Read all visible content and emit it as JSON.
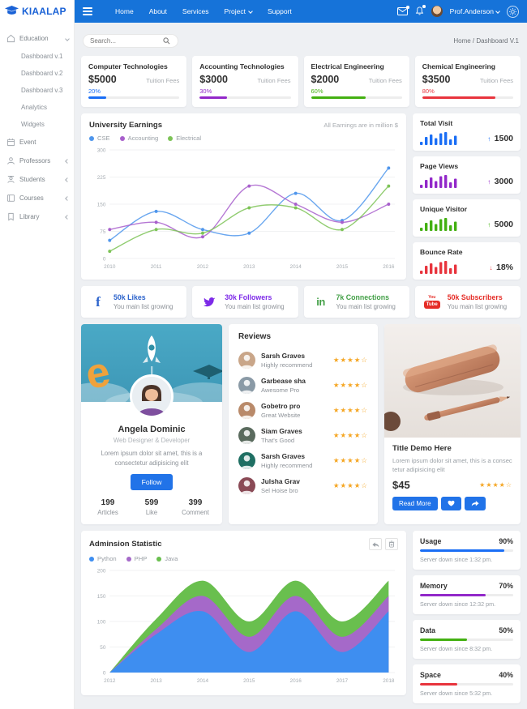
{
  "brand": {
    "name": "KIAALAP"
  },
  "navbar": {
    "links": [
      "Home",
      "About",
      "Services",
      "Project",
      "Support"
    ],
    "user": "Prof.Anderson"
  },
  "search": {
    "placeholder": "Search..."
  },
  "breadcrumb": {
    "text": "Home / Dashboard V.1"
  },
  "sidebar": {
    "items": [
      {
        "label": "Education"
      },
      {
        "label": "Dashboard v.1"
      },
      {
        "label": "Dashboard v.2"
      },
      {
        "label": "Dashboard v.3"
      },
      {
        "label": "Analytics"
      },
      {
        "label": "Widgets"
      },
      {
        "label": "Event"
      },
      {
        "label": "Professors"
      },
      {
        "label": "Students"
      },
      {
        "label": "Courses"
      },
      {
        "label": "Library"
      }
    ]
  },
  "fee_cards": [
    {
      "title": "Computer Technologies",
      "amount": "$5000",
      "fees_label": "Tuition Fees",
      "percent": "20%",
      "value": 20,
      "color": "#1a6ef5"
    },
    {
      "title": "Accounting Technologies",
      "amount": "$3000",
      "fees_label": "Tuition Fees",
      "percent": "30%",
      "value": 30,
      "color": "#9228c9"
    },
    {
      "title": "Electrical Engineering",
      "amount": "$2000",
      "fees_label": "Tuition Fees",
      "percent": "60%",
      "value": 60,
      "color": "#43b011"
    },
    {
      "title": "Chemical Engineering",
      "amount": "$3500",
      "fees_label": "Tuition Fees",
      "percent": "80%",
      "value": 80,
      "color": "#e8343d"
    }
  ],
  "earnings": {
    "title": "University Earnings",
    "note": "All Earnings are in million $"
  },
  "visit_cards": [
    {
      "title": "Total Visit",
      "value": "1500",
      "arrow": "↑",
      "color": "#1a6ef5"
    },
    {
      "title": "Page Views",
      "value": "3000",
      "arrow": "↑",
      "color": "#9228c9"
    },
    {
      "title": "Unique Visitor",
      "value": "5000",
      "arrow": "↑",
      "color": "#43b011"
    },
    {
      "title": "Bounce Rate",
      "value": "18%",
      "arrow": "↓",
      "color": "#e8343d"
    }
  ],
  "sparkline": [
    2,
    6,
    8,
    5,
    9,
    10,
    4,
    7
  ],
  "social_cards": [
    {
      "network": "facebook",
      "stat": "50k Likes",
      "sub": "You main list growing",
      "color": "#2d64cc"
    },
    {
      "network": "twitter",
      "stat": "30k Followers",
      "sub": "You main list growing",
      "color": "#7d2ae8"
    },
    {
      "network": "linkedin",
      "stat": "7k Connections",
      "sub": "You main list growing",
      "color": "#43a047"
    },
    {
      "network": "youtube",
      "stat": "50k Subscribers",
      "sub": "You main list growing",
      "color": "#e52d27",
      "logo_you": "You",
      "logo_tube": "Tube"
    }
  ],
  "profile": {
    "name": "Angela Dominic",
    "role": "Web Designer & Developer",
    "bio": "Lorem ipsum dolor sit amet, this is a consectetur adipisicing elit",
    "follow_label": "Follow",
    "stats": [
      {
        "value": "199",
        "label": "Articles"
      },
      {
        "value": "599",
        "label": "Like"
      },
      {
        "value": "399",
        "label": "Comment"
      }
    ]
  },
  "reviews": {
    "title": "Reviews",
    "items": [
      {
        "name": "Sarsh Graves",
        "comment": "Highly recommend",
        "stars": "★★★★☆",
        "avatar_bg": "#c9a689"
      },
      {
        "name": "Garbease sha",
        "comment": "Awesome Pro",
        "stars": "★★★★☆",
        "avatar_bg": "#8a9aa6"
      },
      {
        "name": "Gobetro pro",
        "comment": "Great Website",
        "stars": "★★★★☆",
        "avatar_bg": "#b98a6a"
      },
      {
        "name": "Siam Graves",
        "comment": "That's Good",
        "stars": "★★★★☆",
        "avatar_bg": "#5a6b5e"
      },
      {
        "name": "Sarsh Graves",
        "comment": "Highly recommend",
        "stars": "★★★★☆",
        "avatar_bg": "#1f6f63"
      },
      {
        "name": "Julsha Grav",
        "comment": "Sel Hoise bro",
        "stars": "★★★★☆",
        "avatar_bg": "#8a4a56"
      }
    ]
  },
  "product": {
    "title": "Title Demo Here",
    "desc": "Lorem ipsum dolor sit amet, this is a consec tetur adipisicing elit",
    "price": "$45",
    "stars": "★★★★☆",
    "read_more": "Read More"
  },
  "admission": {
    "title": "Adminsion Statistic"
  },
  "server_cards": [
    {
      "title": "Usage",
      "percent": "90%",
      "value": 90,
      "color": "#1a6ef5",
      "note": "Server down since 1:32 pm."
    },
    {
      "title": "Memory",
      "percent": "70%",
      "value": 70,
      "color": "#9228c9",
      "note": "Server down since 12:32 pm."
    },
    {
      "title": "Data",
      "percent": "50%",
      "value": 50,
      "color": "#43b011",
      "note": "Server down since 8:32 pm."
    },
    {
      "title": "Space",
      "percent": "40%",
      "value": 40,
      "color": "#e8343d",
      "note": "Server down since 5:32 pm."
    }
  ],
  "chart_data": [
    {
      "type": "line",
      "title": "University Earnings",
      "note": "All Earnings are in million $",
      "x": [
        2010,
        2011,
        2012,
        2013,
        2014,
        2015,
        2016
      ],
      "series": [
        {
          "name": "CSE",
          "color": "#4f96ec",
          "values": [
            50,
            130,
            80,
            70,
            180,
            105,
            250
          ]
        },
        {
          "name": "Accounting",
          "color": "#a85fcc",
          "values": [
            80,
            100,
            60,
            200,
            150,
            100,
            150
          ]
        },
        {
          "name": "Electrical",
          "color": "#7cc356",
          "values": [
            20,
            80,
            70,
            140,
            140,
            80,
            200
          ]
        }
      ],
      "ylim": [
        0,
        300
      ],
      "yticks": [
        0,
        75,
        150,
        225,
        300
      ],
      "grid": true,
      "legend_position": "top-left"
    },
    {
      "type": "area",
      "title": "Adminsion Statistic",
      "stacked": true,
      "x": [
        2012,
        2013,
        2014,
        2015,
        2016,
        2017,
        2018
      ],
      "series": [
        {
          "name": "Python",
          "color": "#3e8ef0",
          "values": [
            0,
            75,
            120,
            40,
            120,
            40,
            120
          ]
        },
        {
          "name": "PHP",
          "color": "#a569c9",
          "values": [
            0,
            10,
            30,
            30,
            30,
            30,
            30
          ]
        },
        {
          "name": "Java",
          "color": "#69bf4e",
          "values": [
            0,
            20,
            30,
            30,
            30,
            30,
            30
          ]
        }
      ],
      "ylim": [
        0,
        200
      ],
      "yticks": [
        0,
        50,
        100,
        150,
        200
      ],
      "grid": true,
      "legend_position": "top-left"
    }
  ]
}
